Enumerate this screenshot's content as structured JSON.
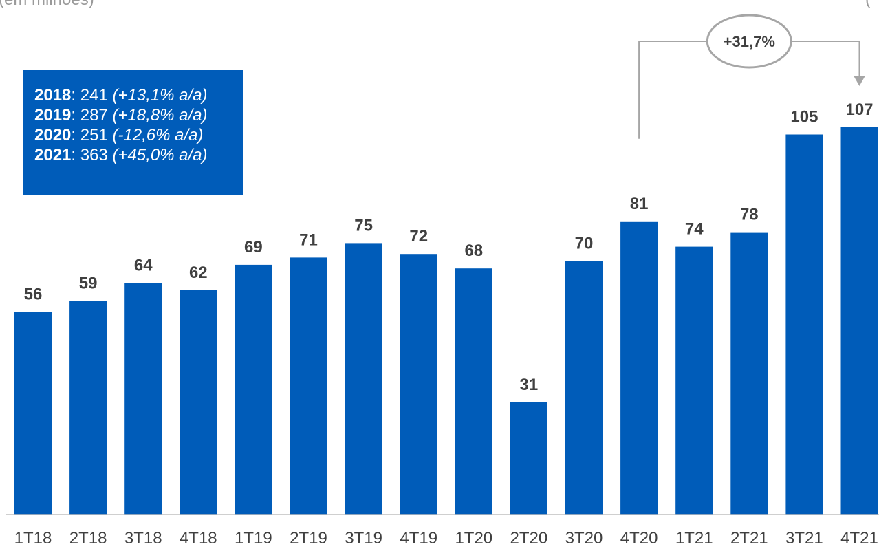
{
  "header": {
    "left_fragment": "(em milhões)",
    "right_fragment": "("
  },
  "summary": [
    {
      "year": "2018",
      "sep": ":",
      "value": " 241 ",
      "change": "(+13,1% a/a)"
    },
    {
      "year": "2019",
      "sep": ":",
      "value": " 287 ",
      "change": "(+18,8% a/a)"
    },
    {
      "year": "2020",
      "sep": ":",
      "value": " 251 ",
      "change": "(-12,6% a/a)"
    },
    {
      "year": "2021",
      "sep": ":",
      "value": " 363 ",
      "change": "(+45,0% a/a)"
    }
  ],
  "growth_annotation": {
    "label": "+31,7%",
    "from": "4T20",
    "to": "4T21"
  },
  "colors": {
    "bar": "#005cb9",
    "label": "#404040",
    "annotation": "#a6a6a6",
    "axis": "#bfbfbf"
  },
  "chart_data": {
    "type": "bar",
    "categories": [
      "1T18",
      "2T18",
      "3T18",
      "4T18",
      "1T19",
      "2T19",
      "3T19",
      "4T19",
      "1T20",
      "2T20",
      "3T20",
      "4T20",
      "1T21",
      "2T21",
      "3T21",
      "4T21"
    ],
    "values": [
      56,
      59,
      64,
      62,
      69,
      71,
      75,
      72,
      68,
      31,
      70,
      81,
      74,
      78,
      105,
      107
    ],
    "title": "",
    "xlabel": "",
    "ylabel": "",
    "ylim": [
      0,
      107
    ],
    "grid": false,
    "legend": "none"
  }
}
